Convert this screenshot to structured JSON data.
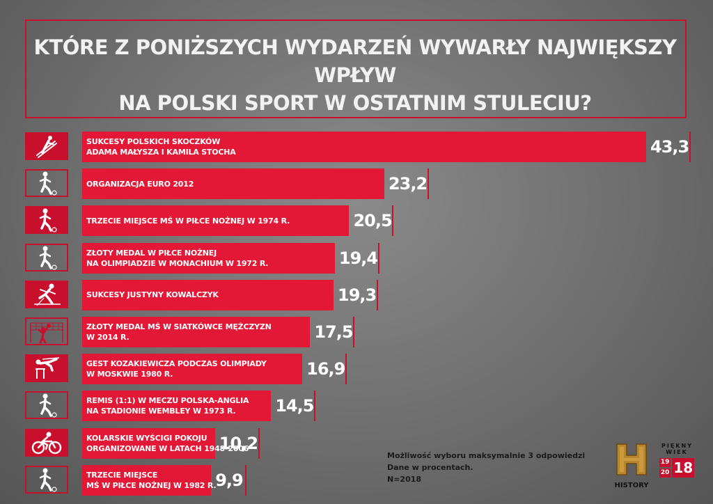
{
  "title": {
    "line1": "KTÓRE Z PONIŻSZYCH WYDARZEŃ WYWARŁY NAJWIĘKSZY WPŁYW",
    "line2": "NA POLSKI SPORT W OSTATNIM STULECIU?"
  },
  "chart_data": {
    "type": "bar",
    "orientation": "horizontal",
    "title": "KTÓRE Z PONIŻSZYCH WYDARZEŃ WYWARŁY NAJWIĘKSZY WPŁYW NA POLSKI SPORT W OSTATNIM STULECIU?",
    "categories": [
      "SUKCESY POLSKICH SKOCZKÓW\nADAMA MAŁYSZA I KAMILA STOCHA",
      "ORGANIZACJA EURO 2012",
      "TRZECIE MIEJSCE MŚ W PIŁCE NOŻNEJ W 1974 R.",
      "ZŁOTY MEDAL W PIŁCE NOŻNEJ\nNA OLIMPIADZIE W MONACHIUM W 1972 R.",
      "SUKCESY JUSTYNY KOWALCZYK",
      "ZŁOTY MEDAL MŚ W SIATKÓWCE MĘŻCZYZN\nW 2014 R.",
      "GEST KOZAKIEWICZA PODCZAS OLIMPIADY\nW MOSKWIE 1980 R.",
      "REMIS (1:1) W MECZU POLSKA-ANGLIA\nNA STADIONIE WEMBLEY W 1973 R.",
      "KOLARSKIE WYŚCIGI POKOJU\nORGANIZOWANE W LATACH 1948-2006",
      "TRZECIE MIEJSCE\nMŚ W PIŁCE NOŻNEJ W 1982 R."
    ],
    "values": [
      43.3,
      23.2,
      20.5,
      19.4,
      19.3,
      17.5,
      16.9,
      14.5,
      10.2,
      9.9
    ],
    "value_labels": [
      "43,3",
      "23,2",
      "20,5",
      "19,4",
      "19,3",
      "17,5",
      "16,9",
      "14,5",
      "10,2",
      "9,9"
    ],
    "icons": [
      "ski-jumper-icon",
      "football-player-icon",
      "football-player-icon",
      "football-player-icon",
      "cross-country-skier-icon",
      "volleyball-icon",
      "pole-vault-icon",
      "football-player-icon",
      "cyclist-icon",
      "football-player-icon"
    ],
    "xlim": [
      0,
      45
    ],
    "grid": false,
    "bar_color": "#e31837"
  },
  "notes": {
    "line1": "Możliwość wyboru maksymalnie 3 odpowiedzi",
    "line2": "Dane w procentach.",
    "line3": "N=2018"
  },
  "logos": {
    "history": "HISTORY",
    "piekny_wiek_top": "PIĘKNY",
    "piekny_wiek_mid": "WIEK",
    "year_a1": "19",
    "year_a2": "20",
    "year_b": "18"
  },
  "colors": {
    "accent": "#c8102e",
    "bar": "#e31837"
  }
}
